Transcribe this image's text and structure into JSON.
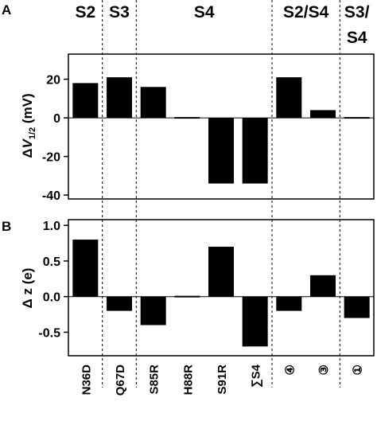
{
  "chart_data": [
    {
      "panel": "A",
      "type": "bar",
      "ylabel_prefix": "Δ",
      "ylabel_var": "V",
      "ylabel_sub": "1/2",
      "ylabel_unit": " (mV)",
      "ylim": [
        -42,
        33
      ],
      "yticks": [
        20,
        0,
        -20,
        -40
      ],
      "categories": [
        "N36D",
        "Q67D",
        "S85R",
        "H88R",
        "S91R",
        "∑S4",
        "④",
        "③",
        "①"
      ],
      "values": [
        18,
        21,
        16,
        -0.5,
        -34,
        -34,
        21,
        4,
        -0.5
      ],
      "grid": false
    },
    {
      "panel": "B",
      "type": "bar",
      "ylabel": "Δ z (e)",
      "ylim": [
        -0.83,
        1.08
      ],
      "yticks": [
        1.0,
        0.5,
        0.0,
        -0.5
      ],
      "ytick_labels": [
        "1.0",
        "0.5",
        "0.0",
        "-0.5"
      ],
      "categories": [
        "N36D",
        "Q67D",
        "S85R",
        "H88R",
        "S91R",
        "∑S4",
        "④",
        "③",
        "①"
      ],
      "values": [
        0.8,
        -0.2,
        -0.4,
        -0.02,
        0.7,
        -0.7,
        -0.2,
        0.3,
        -0.3
      ],
      "grid": false
    }
  ],
  "segments": [
    {
      "label": "S2",
      "cats": [
        0,
        0
      ]
    },
    {
      "label": "S3",
      "cats": [
        1,
        1
      ]
    },
    {
      "label": "S4",
      "cats": [
        2,
        5
      ]
    },
    {
      "label": "S2/S4",
      "cats": [
        6,
        7
      ]
    },
    {
      "label": "S3/",
      "label2": "S4",
      "cats": [
        8,
        8
      ]
    }
  ],
  "dividers_after": [
    0,
    1,
    5,
    7
  ]
}
